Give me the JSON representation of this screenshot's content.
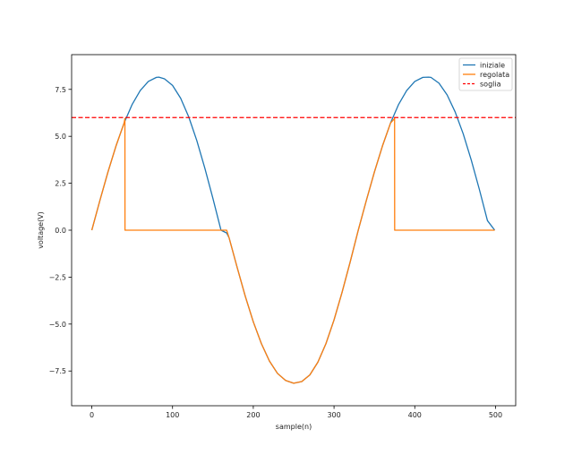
{
  "chart_data": {
    "type": "line",
    "title": "",
    "xlabel": "sample(n)",
    "ylabel": "voltage(V)",
    "xlim": [
      -25,
      525
    ],
    "ylim": [
      -9.35,
      9.35
    ],
    "xticks": [
      0,
      100,
      200,
      300,
      400,
      500
    ],
    "xtick_labels": [
      "0",
      "100",
      "200",
      "300",
      "400",
      "500"
    ],
    "yticks": [
      -7.5,
      -5.0,
      -2.5,
      0.0,
      2.5,
      5.0,
      7.5
    ],
    "ytick_labels": [
      "−7.5",
      "−5.0",
      "−2.5",
      "0.0",
      "2.5",
      "5.0",
      "7.5"
    ],
    "grid": false,
    "legend_position": "top-right",
    "series": [
      {
        "name": "iniziale",
        "color": "#1f77b4",
        "style": "solid",
        "x": [
          0,
          10,
          20,
          30,
          40,
          50,
          60,
          70,
          80,
          83,
          90,
          100,
          110,
          120,
          130,
          140,
          150,
          160,
          167,
          170,
          180,
          190,
          200,
          210,
          220,
          230,
          240,
          250,
          260,
          270,
          280,
          290,
          300,
          310,
          320,
          330,
          340,
          350,
          360,
          370,
          380,
          390,
          400,
          410,
          417,
          420,
          430,
          440,
          450,
          460,
          470,
          480,
          490,
          499
        ],
        "y": [
          0.0,
          1.58,
          3.1,
          4.49,
          5.71,
          6.7,
          7.44,
          7.92,
          8.14,
          8.15,
          8.06,
          7.71,
          7.03,
          6.04,
          4.78,
          3.3,
          1.69,
          0.0,
          -0.15,
          -0.4,
          -1.98,
          -3.51,
          -4.88,
          -6.04,
          -6.97,
          -7.63,
          -8.0,
          -8.15,
          -8.06,
          -7.71,
          -7.03,
          -6.04,
          -4.78,
          -3.3,
          -1.69,
          0.0,
          1.58,
          3.1,
          4.49,
          5.71,
          6.7,
          7.44,
          7.92,
          8.14,
          8.15,
          8.14,
          7.83,
          7.21,
          6.3,
          5.13,
          3.73,
          2.17,
          0.51,
          -0.0
        ]
      },
      {
        "name": "regolata",
        "color": "#ff7f0e",
        "style": "solid",
        "x": [
          0,
          10,
          20,
          30,
          40,
          41,
          41.1,
          100,
          167,
          170,
          180,
          190,
          200,
          210,
          220,
          230,
          240,
          250,
          260,
          270,
          280,
          290,
          300,
          310,
          320,
          330,
          340,
          350,
          360,
          370,
          375,
          375.1,
          420,
          499
        ],
        "y": [
          0.0,
          1.58,
          3.1,
          4.49,
          5.71,
          5.95,
          0.0,
          0.0,
          0.0,
          -0.4,
          -1.98,
          -3.51,
          -4.88,
          -6.04,
          -6.97,
          -7.63,
          -8.0,
          -8.15,
          -8.06,
          -7.71,
          -7.03,
          -6.04,
          -4.78,
          -3.3,
          -1.69,
          0.0,
          1.58,
          3.1,
          4.49,
          5.71,
          5.95,
          0.0,
          0.0,
          0.0
        ]
      },
      {
        "name": "soglia",
        "color": "#ff0000",
        "style": "dashed",
        "x": [
          -25,
          525
        ],
        "y": [
          6.0,
          6.0
        ]
      }
    ]
  }
}
